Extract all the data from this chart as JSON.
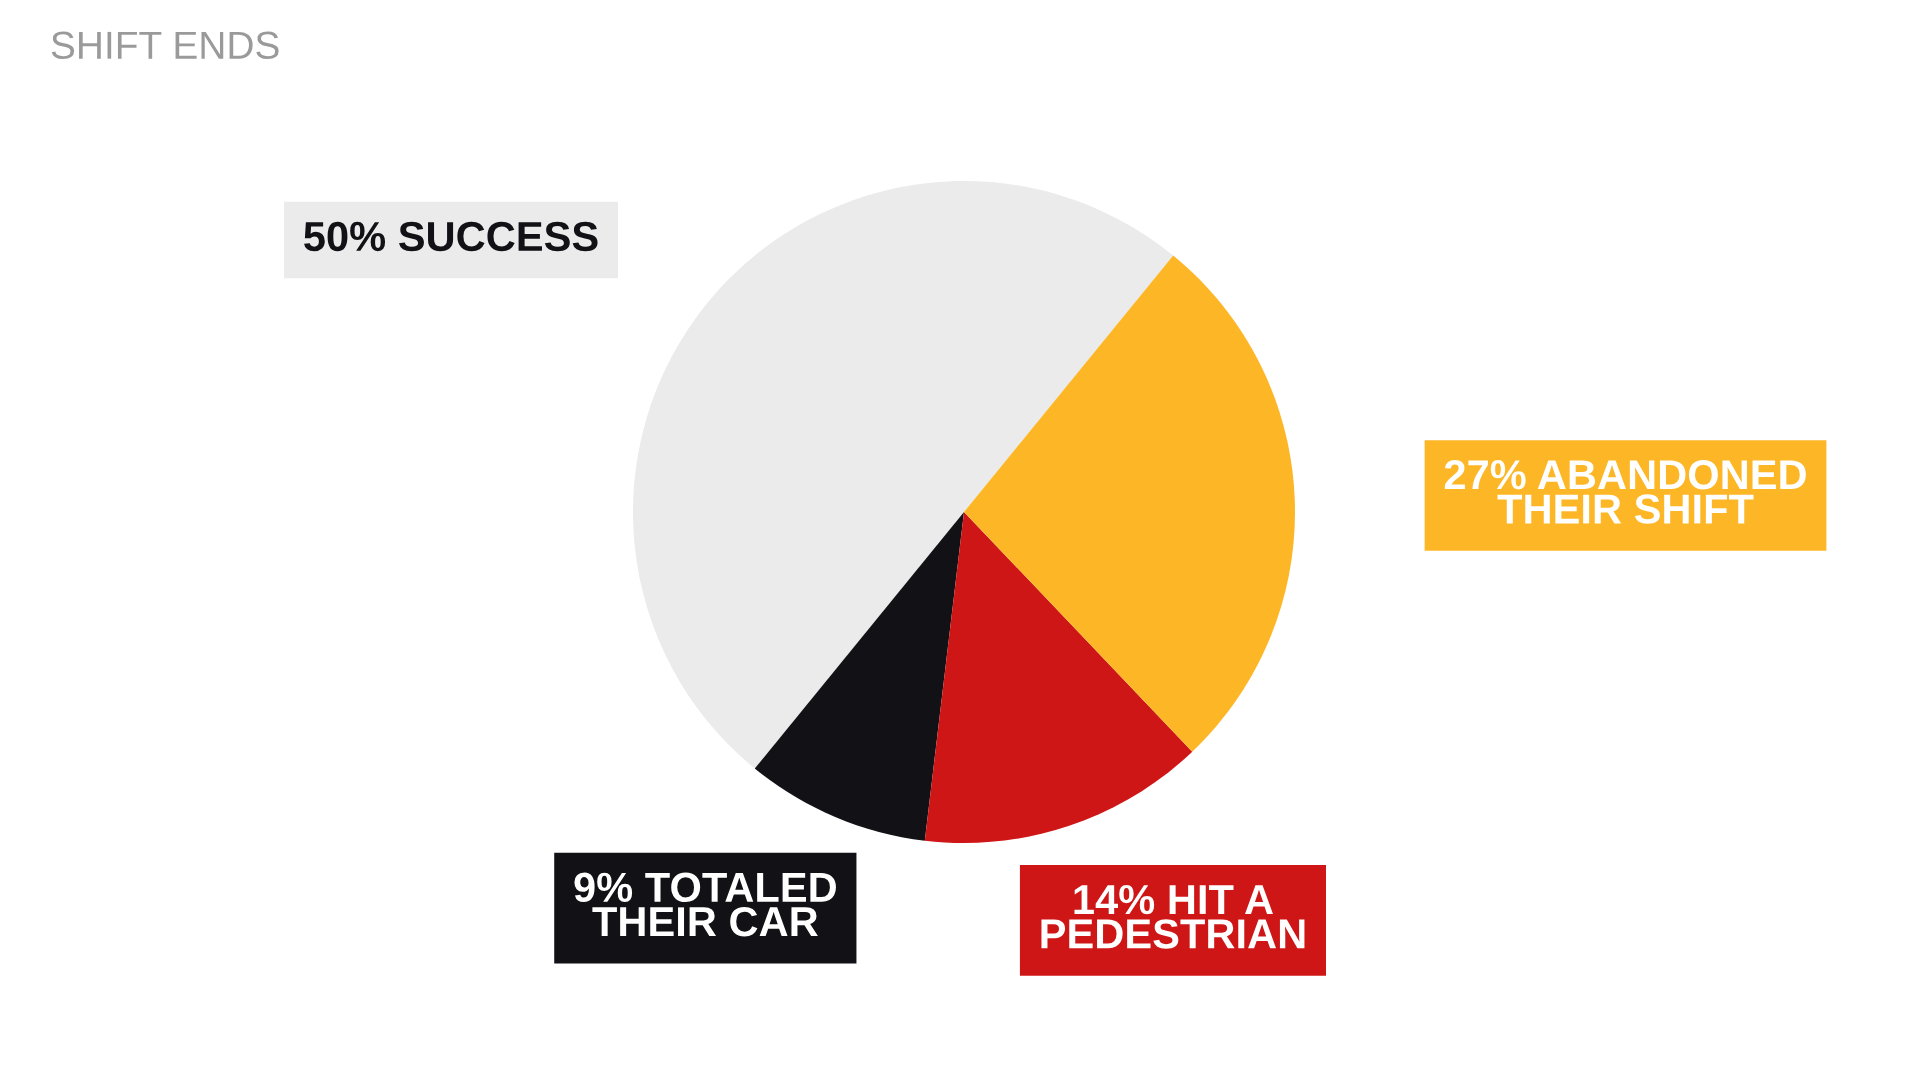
{
  "chart_data": {
    "type": "pie",
    "title": "SHIFT ENDS",
    "categories": [
      "SUCCESS",
      "TOTALED\nTHEIR CAR",
      "HIT A\nPEDESTRIAN",
      "ABANDONED\nTHEIR SHIFT"
    ],
    "values": [
      50,
      9,
      14,
      27
    ],
    "value_labels": [
      "50%",
      "9%",
      "14%",
      "27%"
    ],
    "colors": [
      "#ebebeb",
      "#111116",
      "#cf1616",
      "#fdb726"
    ]
  }
}
